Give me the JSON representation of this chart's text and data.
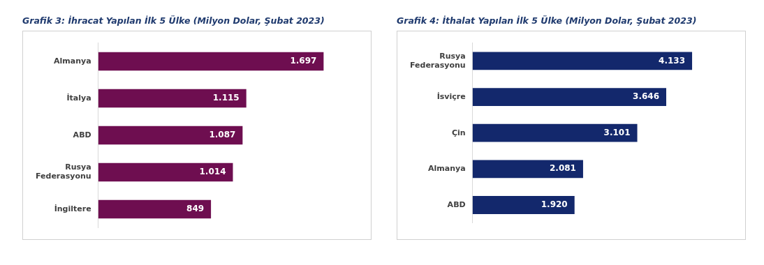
{
  "chart_data": [
    {
      "type": "bar",
      "orientation": "horizontal",
      "title": "Grafik 3:  İhracat Yapılan İlk 5 Ülke (Milyon Dolar, Şubat 2023)",
      "categories": [
        "Almanya",
        "İtalya",
        "ABD",
        "Rusya Federasyonu",
        "İngiltere"
      ],
      "values": [
        1697,
        1115,
        1087,
        1014,
        849
      ],
      "value_labels": [
        "1.697",
        "1.115",
        "1.087",
        "1.014",
        "849"
      ],
      "color": "#6e0e50",
      "grid": false,
      "legend": false,
      "tick_labels": "y"
    },
    {
      "type": "bar",
      "orientation": "horizontal",
      "title": "Grafik 4:  İthalat Yapılan İlk 5 Ülke (Milyon Dolar, Şubat 2023)",
      "categories": [
        "Rusya Federasyonu",
        "İsviçre",
        "Çin",
        "Almanya",
        "ABD"
      ],
      "values": [
        4133,
        3646,
        3101,
        2081,
        1920
      ],
      "value_labels": [
        "4.133",
        "3.646",
        "3.101",
        "2.081",
        "1.920"
      ],
      "color": "#13286c",
      "grid": false,
      "legend": false,
      "tick_labels": "y"
    }
  ]
}
